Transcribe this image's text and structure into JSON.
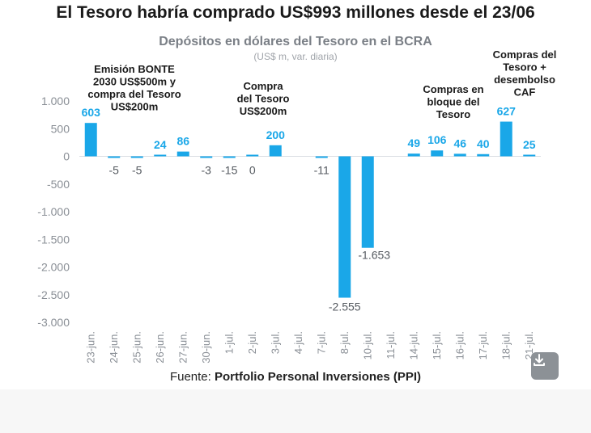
{
  "headline": "El Tesoro habría comprado US$993 millones desde el 23/06",
  "chart_data": {
    "type": "bar",
    "title": "Depósitos en dólares del Tesoro en el BCRA",
    "subtitle": "(US$ m, var. diaria)",
    "categories": [
      "23-jun.",
      "24-jun.",
      "25-jun.",
      "26-jun.",
      "27-jun.",
      "30-jun.",
      "1-jul.",
      "2-jul.",
      "3-jul.",
      "4-jul.",
      "7-jul.",
      "8-jul.",
      "10-jul.",
      "11-jul.",
      "14-jul.",
      "15-jul.",
      "16-jul.",
      "17-jul.",
      "18-jul.",
      "21-jul."
    ],
    "values": [
      603,
      -5,
      -5,
      24,
      86,
      -3,
      -15,
      0,
      200,
      null,
      -11,
      -2555,
      -1653,
      null,
      49,
      106,
      46,
      40,
      627,
      25
    ],
    "value_labels": [
      "603",
      "-5",
      "-5",
      "24",
      "86",
      "-3",
      "-15",
      "0",
      "200",
      "",
      "-11",
      "-2.555",
      "-1.653",
      "",
      "49",
      "106",
      "46",
      "40",
      "627",
      "25"
    ],
    "yticks": [
      1000,
      500,
      0,
      -500,
      -1000,
      -1500,
      -2000,
      -2500,
      -3000
    ],
    "ytick_labels": [
      "1.000",
      "500",
      "0",
      "-500",
      "-1.000",
      "-1.500",
      "-2.000",
      "-2.500",
      "-3.000"
    ],
    "ylim": [
      -3000,
      1000
    ],
    "bar_color": "#1aa7e8",
    "annotations": [
      {
        "category": "24-jun.",
        "lines": [
          "Emisión BONTE",
          "2030 US$500m y",
          "compra del Tesoro",
          "US$200m"
        ]
      },
      {
        "category": "3-jul.",
        "lines": [
          "Compra",
          "del Tesoro",
          "US$200m"
        ]
      },
      {
        "category": "15-jul.",
        "lines": [
          "Compras en",
          "bloque del",
          "Tesoro"
        ]
      },
      {
        "category": "18-jul.",
        "lines": [
          "Compras del",
          "Tesoro +",
          "desembolso",
          "CAF"
        ]
      }
    ]
  },
  "source": {
    "prefix": "Fuente: ",
    "name": "Portfolio Personal Inversiones (PPI)"
  },
  "download": {
    "icon": "download-icon"
  }
}
